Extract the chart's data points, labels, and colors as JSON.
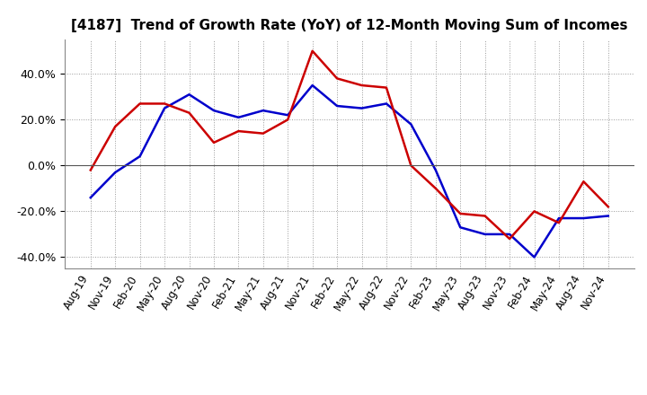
{
  "title": "[4187]  Trend of Growth Rate (YoY) of 12-Month Moving Sum of Incomes",
  "x_labels": [
    "Aug-19",
    "Nov-19",
    "Feb-20",
    "May-20",
    "Aug-20",
    "Nov-20",
    "Feb-21",
    "May-21",
    "Aug-21",
    "Nov-21",
    "Feb-22",
    "May-22",
    "Aug-22",
    "Nov-22",
    "Feb-23",
    "May-23",
    "Aug-23",
    "Nov-23",
    "Feb-24",
    "May-24",
    "Aug-24",
    "Nov-24"
  ],
  "ordinary_income": [
    -0.14,
    -0.03,
    0.04,
    0.25,
    0.31,
    0.24,
    0.21,
    0.24,
    0.22,
    0.35,
    0.26,
    0.25,
    0.27,
    0.18,
    -0.02,
    -0.27,
    -0.3,
    -0.3,
    -0.4,
    -0.23,
    -0.23,
    -0.22
  ],
  "net_income": [
    -0.02,
    0.17,
    0.27,
    0.27,
    0.23,
    0.1,
    0.15,
    0.14,
    0.2,
    0.5,
    0.38,
    0.35,
    0.34,
    0.0,
    -0.1,
    -0.21,
    -0.22,
    -0.32,
    -0.2,
    -0.25,
    -0.07,
    -0.18
  ],
  "ordinary_color": "#0000cc",
  "net_color": "#cc0000",
  "ylim": [
    -0.45,
    0.55
  ],
  "yticks": [
    -0.4,
    -0.2,
    0.0,
    0.2,
    0.4
  ],
  "background_color": "#ffffff",
  "grid_color": "#999999",
  "title_fontsize": 11
}
